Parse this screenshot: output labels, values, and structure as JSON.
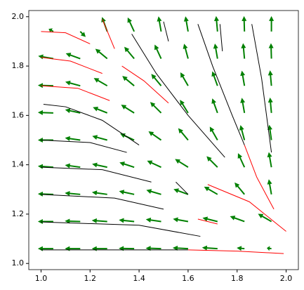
{
  "chart_data": {
    "type": "quiver",
    "xlim": [
      0.95,
      2.05
    ],
    "ylim": [
      0.975,
      2.025
    ],
    "xticks": [
      {
        "value": 1,
        "label": "1.0"
      },
      1.2,
      1.4,
      1.6,
      1.8,
      {
        "value": 2,
        "label": "2.0"
      }
    ],
    "yticks": [
      {
        "value": 1,
        "label": "1.0"
      },
      1.2,
      1.4,
      1.6,
      1.8,
      {
        "value": 2,
        "label": "2.0"
      }
    ],
    "quiver": {
      "color": "#008000",
      "x": [
        1.05,
        1.16,
        1.27,
        1.38,
        1.49,
        1.6,
        1.72,
        1.83,
        1.94
      ],
      "y": [
        1.06,
        1.17,
        1.28,
        1.39,
        1.5,
        1.61,
        1.72,
        1.83,
        1.94
      ],
      "u": [
        [
          -1,
          -1,
          -1,
          -1,
          -1,
          -1,
          -1,
          -0.5,
          -0.3
        ],
        [
          -1,
          -1,
          -1,
          -0.99,
          -0.99,
          -0.98,
          -0.97,
          -0.94,
          -0.87
        ],
        [
          -1,
          -1,
          -0.99,
          -0.98,
          -0.96,
          -0.94,
          -0.87,
          -0.64,
          -0.17
        ],
        [
          -1,
          -0.99,
          -0.98,
          -0.95,
          -0.91,
          -0.85,
          -0.71,
          -0.42,
          -0.17
        ],
        [
          -1,
          -0.99,
          -0.97,
          -0.91,
          -0.82,
          -0.64,
          -0.5,
          -0.26,
          -0.14
        ],
        [
          -1,
          -0.98,
          -0.93,
          -0.85,
          -0.71,
          -0.53,
          -0.34,
          -0.17,
          -0.09
        ],
        [
          -1,
          -0.97,
          -0.87,
          -0.77,
          -0.64,
          -0.5,
          -0.34,
          -0.17,
          -0.09
        ],
        [
          -0.98,
          -0.94,
          -0.77,
          -0.64,
          -0.42,
          -0.26,
          -0.17,
          -0.09,
          -0.03
        ],
        [
          -0.3,
          0.35,
          -0.34,
          -0.42,
          -0.17,
          -0.17,
          -0.09,
          -0.03,
          0
        ]
      ],
      "v": [
        [
          0,
          0,
          0,
          0.02,
          0.03,
          0.05,
          0.07,
          0.05,
          0.04
        ],
        [
          0,
          0.03,
          0.07,
          0.1,
          0.14,
          0.17,
          0.24,
          0.34,
          0.5
        ],
        [
          0.03,
          0.09,
          0.14,
          0.21,
          0.28,
          0.34,
          0.5,
          0.77,
          0.98
        ],
        [
          0.07,
          0.14,
          0.21,
          0.31,
          0.42,
          0.53,
          0.71,
          0.91,
          0.98
        ],
        [
          0,
          0.14,
          0.26,
          0.42,
          0.57,
          0.77,
          0.87,
          0.97,
          0.99
        ],
        [
          0.03,
          0.21,
          0.37,
          0.53,
          0.71,
          0.85,
          0.94,
          0.98,
          1
        ],
        [
          0.03,
          0.26,
          0.5,
          0.64,
          0.77,
          0.87,
          0.94,
          0.98,
          1
        ],
        [
          0.17,
          0.34,
          0.64,
          0.77,
          0.91,
          0.97,
          0.98,
          1,
          1
        ],
        [
          0.17,
          -0.35,
          0.94,
          0.91,
          0.98,
          0.98,
          1,
          1,
          1
        ]
      ]
    },
    "streamlines": [
      {
        "color": "#ff0000",
        "x": [
          1.2,
          1.1,
          1.0
        ],
        "y": [
          1.89,
          1.935,
          1.94
        ]
      },
      {
        "color": "#ff0000",
        "x": [
          1.25,
          1.12,
          1.0
        ],
        "y": [
          1.77,
          1.82,
          1.835
        ]
      },
      {
        "color": "#ff0000",
        "x": [
          1.28,
          1.15,
          1.0
        ],
        "y": [
          1.66,
          1.71,
          1.72
        ]
      },
      {
        "color": "#000000",
        "x": [
          1.4,
          1.25,
          1.1,
          1.01
        ],
        "y": [
          1.48,
          1.58,
          1.635,
          1.645
        ]
      },
      {
        "color": "#000000",
        "x": [
          1.35,
          1.2,
          1.0
        ],
        "y": [
          1.45,
          1.49,
          1.5
        ]
      },
      {
        "color": "#000000",
        "x": [
          1.45,
          1.25,
          1.0
        ],
        "y": [
          1.33,
          1.38,
          1.39
        ]
      },
      {
        "color": "#000000",
        "x": [
          1.5,
          1.3,
          1.0
        ],
        "y": [
          1.22,
          1.265,
          1.28
        ]
      },
      {
        "color": "#000000",
        "x": [
          1.65,
          1.4,
          1.0
        ],
        "y": [
          1.11,
          1.155,
          1.168
        ]
      },
      {
        "color": "#000000",
        "x": [
          1.6,
          1.0
        ],
        "y": [
          1.055,
          1.055
        ]
      },
      {
        "color": "#ff0000",
        "x": [
          1.99,
          1.8,
          1.6
        ],
        "y": [
          1.04,
          1.05,
          1.055
        ]
      },
      {
        "color": "#ff0000",
        "x": [
          1.25,
          1.3
        ],
        "y": [
          1.99,
          1.87
        ]
      },
      {
        "color": "#ff0000",
        "x": [
          1.33,
          1.42,
          1.52
        ],
        "y": [
          1.8,
          1.74,
          1.65
        ]
      },
      {
        "color": "#000000",
        "x": [
          1.37,
          1.47,
          1.6,
          1.75
        ],
        "y": [
          1.93,
          1.77,
          1.6,
          1.43
        ]
      },
      {
        "color": "#000000",
        "x": [
          1.64,
          1.7,
          1.78,
          1.83
        ],
        "y": [
          1.97,
          1.8,
          1.6,
          1.48
        ]
      },
      {
        "color": "#ff0000",
        "x": [
          1.83,
          1.88,
          1.95
        ],
        "y": [
          1.48,
          1.35,
          1.22
        ]
      },
      {
        "color": "#ff0000",
        "x": [
          1.68,
          1.85,
          1.95,
          2.0
        ],
        "y": [
          1.32,
          1.25,
          1.17,
          1.13
        ]
      },
      {
        "color": "#000000",
        "x": [
          1.86,
          1.9,
          1.94
        ],
        "y": [
          1.97,
          1.75,
          1.45
        ]
      },
      {
        "color": "#000000",
        "x": [
          1.5,
          1.52
        ],
        "y": [
          1.98,
          1.9
        ]
      },
      {
        "color": "#000000",
        "x": [
          1.73,
          1.74
        ],
        "y": [
          1.97,
          1.86
        ]
      },
      {
        "color": "#ff0000",
        "x": [
          1.64,
          1.72
        ],
        "y": [
          1.18,
          1.16
        ]
      },
      {
        "color": "#000000",
        "x": [
          1.55,
          1.6
        ],
        "y": [
          1.33,
          1.28
        ]
      }
    ]
  }
}
